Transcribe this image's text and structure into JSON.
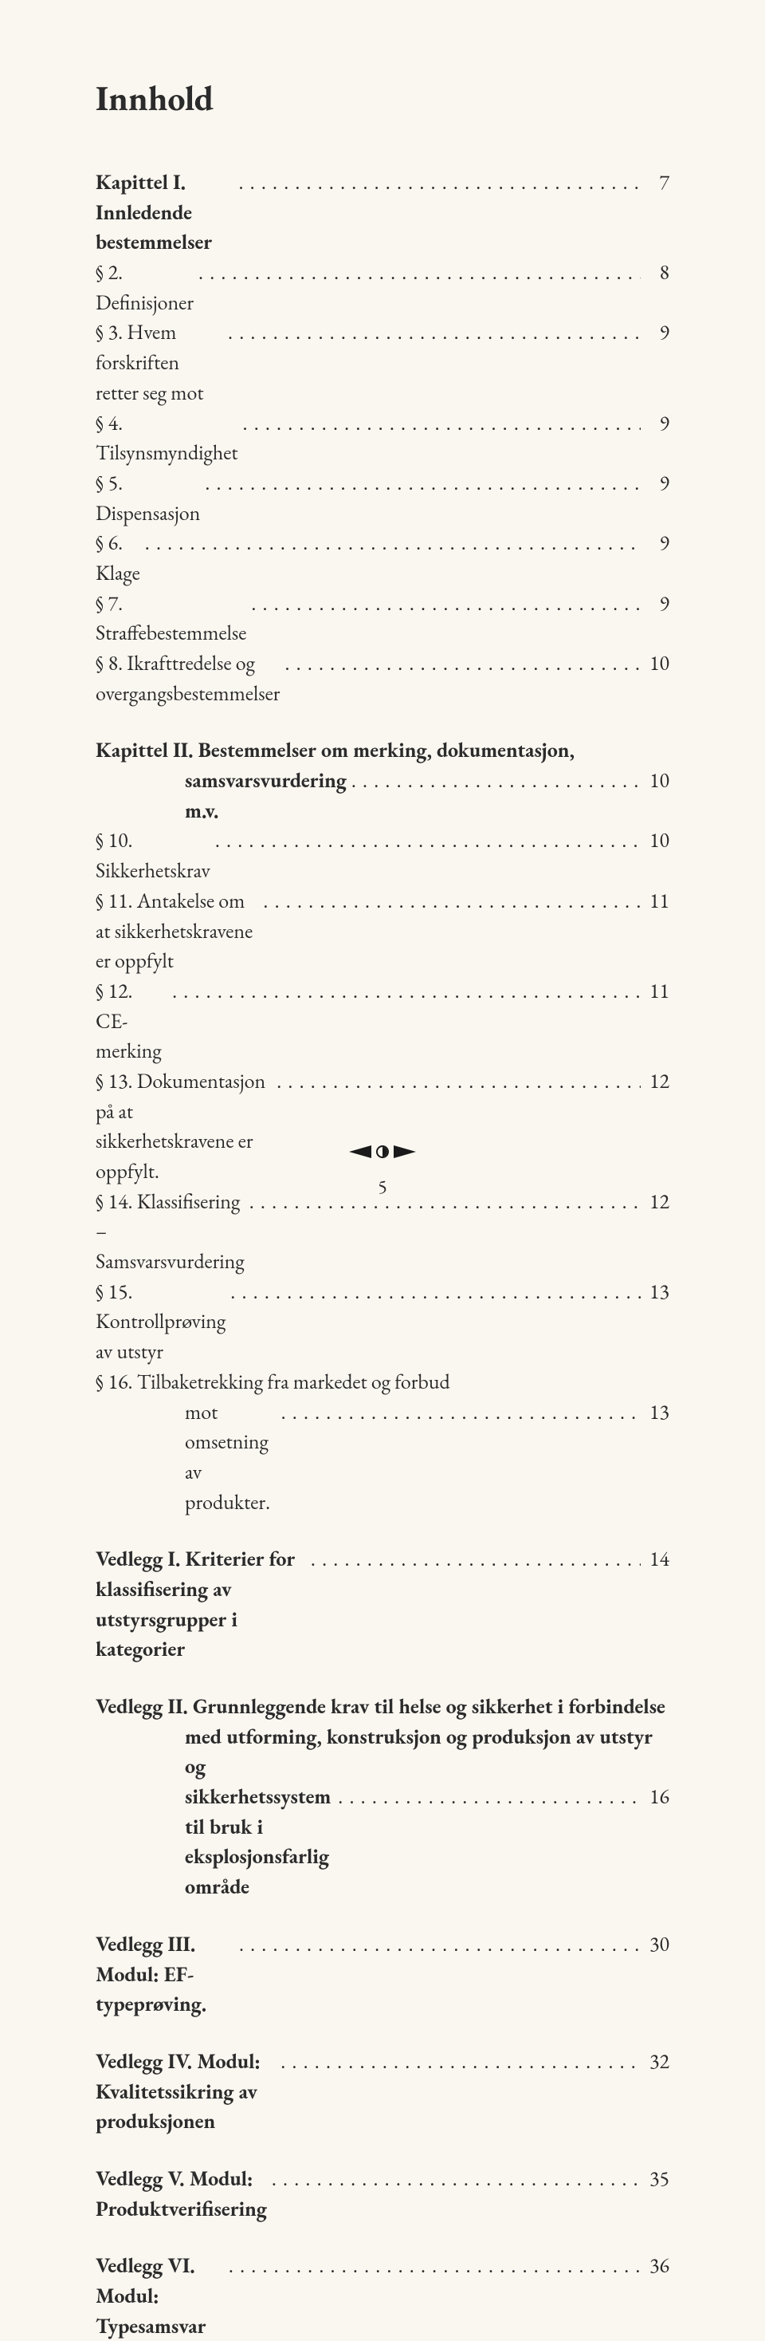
{
  "colors": {
    "background": "#faf6f0",
    "text": "#2b2b2b",
    "ornament": "#1a1a1a"
  },
  "typography": {
    "title_fontsize": 44,
    "body_fontsize": 26,
    "line_height": 1.45,
    "font_family": "Garamond serif"
  },
  "title": "Innhold",
  "page_number": "5",
  "blocks": [
    {
      "type": "group",
      "lines": [
        {
          "segments": [
            {
              "text": "Kapittel I. Innledende bestemmelser",
              "bold": true
            }
          ],
          "page": "7"
        },
        {
          "segments": [
            {
              "text": "§ 2. Definisjoner"
            }
          ],
          "page": "8"
        },
        {
          "segments": [
            {
              "text": "§ 3. Hvem forskriften retter seg mot"
            }
          ],
          "page": "9"
        },
        {
          "segments": [
            {
              "text": "§ 4. Tilsynsmyndighet"
            }
          ],
          "page": "9"
        },
        {
          "segments": [
            {
              "text": "§ 5. Dispensasjon"
            }
          ],
          "page": "9"
        },
        {
          "segments": [
            {
              "text": "§ 6. Klage"
            }
          ],
          "page": "9"
        },
        {
          "segments": [
            {
              "text": "§ 7. Straffebestemmelse"
            }
          ],
          "page": "9"
        },
        {
          "segments": [
            {
              "text": "§ 8. Ikrafttredelse og overgangsbestemmelser"
            }
          ],
          "page": "10"
        }
      ]
    },
    {
      "type": "group",
      "lines": [
        {
          "segments": [
            {
              "text": "Kapittel II. Bestemmelser om merking, dokumentasjon,",
              "bold": true
            }
          ],
          "page": null
        },
        {
          "indent": 1,
          "segments": [
            {
              "text": "samsvarsvurdering m.v.",
              "bold": true
            }
          ],
          "page": "10"
        },
        {
          "segments": [
            {
              "text": "§ 10. Sikkerhetskrav"
            }
          ],
          "page": "10"
        },
        {
          "segments": [
            {
              "text": "§ 11. Antakelse om at sikkerhetskravene er oppfylt"
            }
          ],
          "page": "11"
        },
        {
          "segments": [
            {
              "text": "§ 12. CE-merking"
            }
          ],
          "page": "11"
        },
        {
          "segments": [
            {
              "text": "§ 13. Dokumentasjon på at sikkerhetskravene er oppfylt."
            }
          ],
          "page": "12"
        },
        {
          "segments": [
            {
              "text": "§ 14. Klassifisering – Samsvarsvurdering"
            }
          ],
          "page": "12"
        },
        {
          "segments": [
            {
              "text": "§ 15. Kontrollprøving av utstyr"
            }
          ],
          "page": "13"
        },
        {
          "segments": [
            {
              "text": "§ 16. Tilbaketrekking fra markedet og forbud"
            }
          ],
          "page": null
        },
        {
          "indent": 1,
          "segments": [
            {
              "text": "mot omsetning av produkter."
            }
          ],
          "page": "13"
        }
      ]
    },
    {
      "type": "group",
      "lines": [
        {
          "segments": [
            {
              "text": "Vedlegg I. Kriterier for klassifisering av utstyrsgrupper i kategorier",
              "bold": true
            }
          ],
          "page": "14"
        }
      ]
    },
    {
      "type": "group",
      "lines": [
        {
          "segments": [
            {
              "text": "Vedlegg II. Grunnleggende krav til helse og sikkerhet i forbindelse",
              "bold": true
            }
          ],
          "page": null
        },
        {
          "indent": 1,
          "segments": [
            {
              "text": "med utforming, konstruksjon og produksjon av utstyr og",
              "bold": true
            }
          ],
          "page": null
        },
        {
          "indent": 1,
          "segments": [
            {
              "text": "sikkerhetssystem til bruk i eksplosjonsfarlig område",
              "bold": true
            }
          ],
          "page": "16"
        }
      ]
    },
    {
      "type": "group",
      "lines": [
        {
          "segments": [
            {
              "text": "Vedlegg III. Modul: EF-typeprøving.",
              "bold": true
            }
          ],
          "page": "30"
        }
      ]
    },
    {
      "type": "group",
      "lines": [
        {
          "segments": [
            {
              "text": "Vedlegg IV. Modul: Kvalitetssikring av produksjonen",
              "bold": true
            }
          ],
          "page": "32"
        }
      ]
    },
    {
      "type": "group",
      "lines": [
        {
          "segments": [
            {
              "text": "Vedlegg V. Modul: Produktverifisering",
              "bold": true
            }
          ],
          "page": "35"
        }
      ]
    },
    {
      "type": "group",
      "lines": [
        {
          "segments": [
            {
              "text": "Vedlegg VI. Modul: Typesamsvar",
              "bold": true
            }
          ],
          "page": "36"
        }
      ]
    }
  ]
}
